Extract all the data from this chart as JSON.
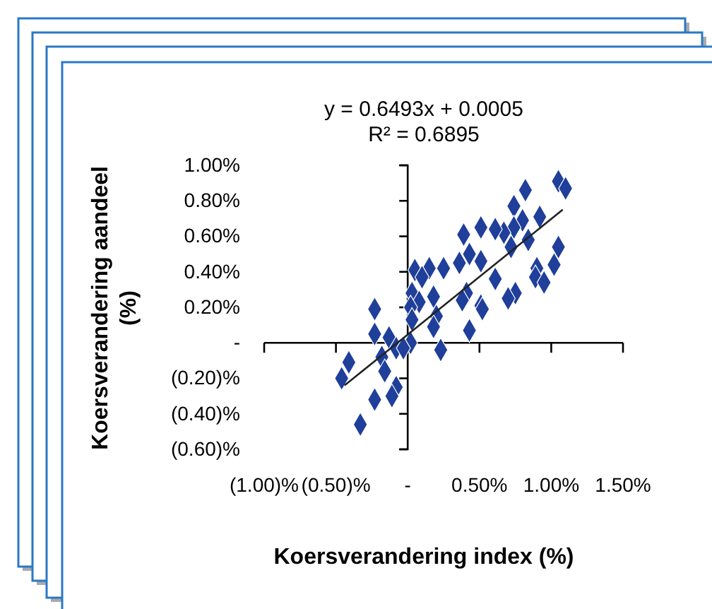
{
  "chart_data": {
    "type": "scatter",
    "annotations": [
      "y = 0.6493x + 0.0005",
      "R² = 0.6895"
    ],
    "xlabel": "Koersverandering index (%)",
    "ylabel": "Koersverandering aandeel (%)",
    "xlim": [
      -1.0,
      1.5
    ],
    "ylim": [
      -0.6,
      1.0
    ],
    "xticks": [
      {
        "value": -1.0,
        "label": "(1.00)%"
      },
      {
        "value": -0.5,
        "label": "(0.50)%"
      },
      {
        "value": 0,
        "label": "-"
      },
      {
        "value": 0.5,
        "label": "0.50%"
      },
      {
        "value": 1.0,
        "label": "1.00%"
      },
      {
        "value": 1.5,
        "label": "1.50%"
      }
    ],
    "yticks": [
      {
        "value": -0.6,
        "label": "(0.60)%"
      },
      {
        "value": -0.4,
        "label": "(0.40)%"
      },
      {
        "value": -0.2,
        "label": "(0.20)%"
      },
      {
        "value": 0,
        "label": "-"
      },
      {
        "value": 0.2,
        "label": "0.20%"
      },
      {
        "value": 0.4,
        "label": "0.40%"
      },
      {
        "value": 0.6,
        "label": "0.60%"
      },
      {
        "value": 0.8,
        "label": "0.80%"
      },
      {
        "value": 1.0,
        "label": "1.00%"
      }
    ],
    "ref_lines": [
      {
        "axis": "y",
        "value": 0,
        "color": "#000000"
      }
    ],
    "series": [
      {
        "type": "scatter",
        "marker": "diamond",
        "color": "#1f3f9a",
        "x": [
          1.05,
          1.1,
          0.82,
          0.74,
          0.92,
          0.8,
          0.74,
          0.67,
          0.51,
          0.61,
          0.39,
          0.84,
          0.72,
          1.05,
          0.43,
          0.51,
          0.36,
          0.25,
          0.15,
          0.05,
          0.1,
          0.9,
          1.02,
          0.89,
          0.95,
          0.61,
          0.75,
          0.7,
          0.41,
          0.38,
          0.51,
          0.52,
          0.18,
          0.03,
          0.08,
          0.02,
          0.2,
          0.18,
          0.03,
          0.43,
          0.23,
          0.02,
          -0.23,
          -0.23,
          -0.13,
          -0.08,
          -0.03,
          -0.18,
          -0.16,
          -0.41,
          -0.46,
          -0.08,
          -0.11,
          -0.23,
          -0.33
        ],
        "values": [
          0.91,
          0.87,
          0.86,
          0.77,
          0.71,
          0.69,
          0.65,
          0.62,
          0.65,
          0.64,
          0.61,
          0.58,
          0.54,
          0.54,
          0.5,
          0.46,
          0.45,
          0.42,
          0.42,
          0.41,
          0.37,
          0.42,
          0.44,
          0.37,
          0.34,
          0.36,
          0.28,
          0.25,
          0.28,
          0.24,
          0.21,
          0.19,
          0.26,
          0.28,
          0.23,
          0.2,
          0.15,
          0.09,
          0.13,
          0.07,
          -0.04,
          0.0,
          0.19,
          0.05,
          0.03,
          -0.03,
          -0.03,
          -0.08,
          -0.16,
          -0.11,
          -0.2,
          -0.25,
          -0.3,
          -0.32,
          -0.46
        ]
      },
      {
        "type": "line",
        "marker": "none",
        "color": "#222222",
        "x": [
          -0.44,
          1.08
        ],
        "values": [
          -0.24,
          0.75
        ]
      }
    ]
  }
}
